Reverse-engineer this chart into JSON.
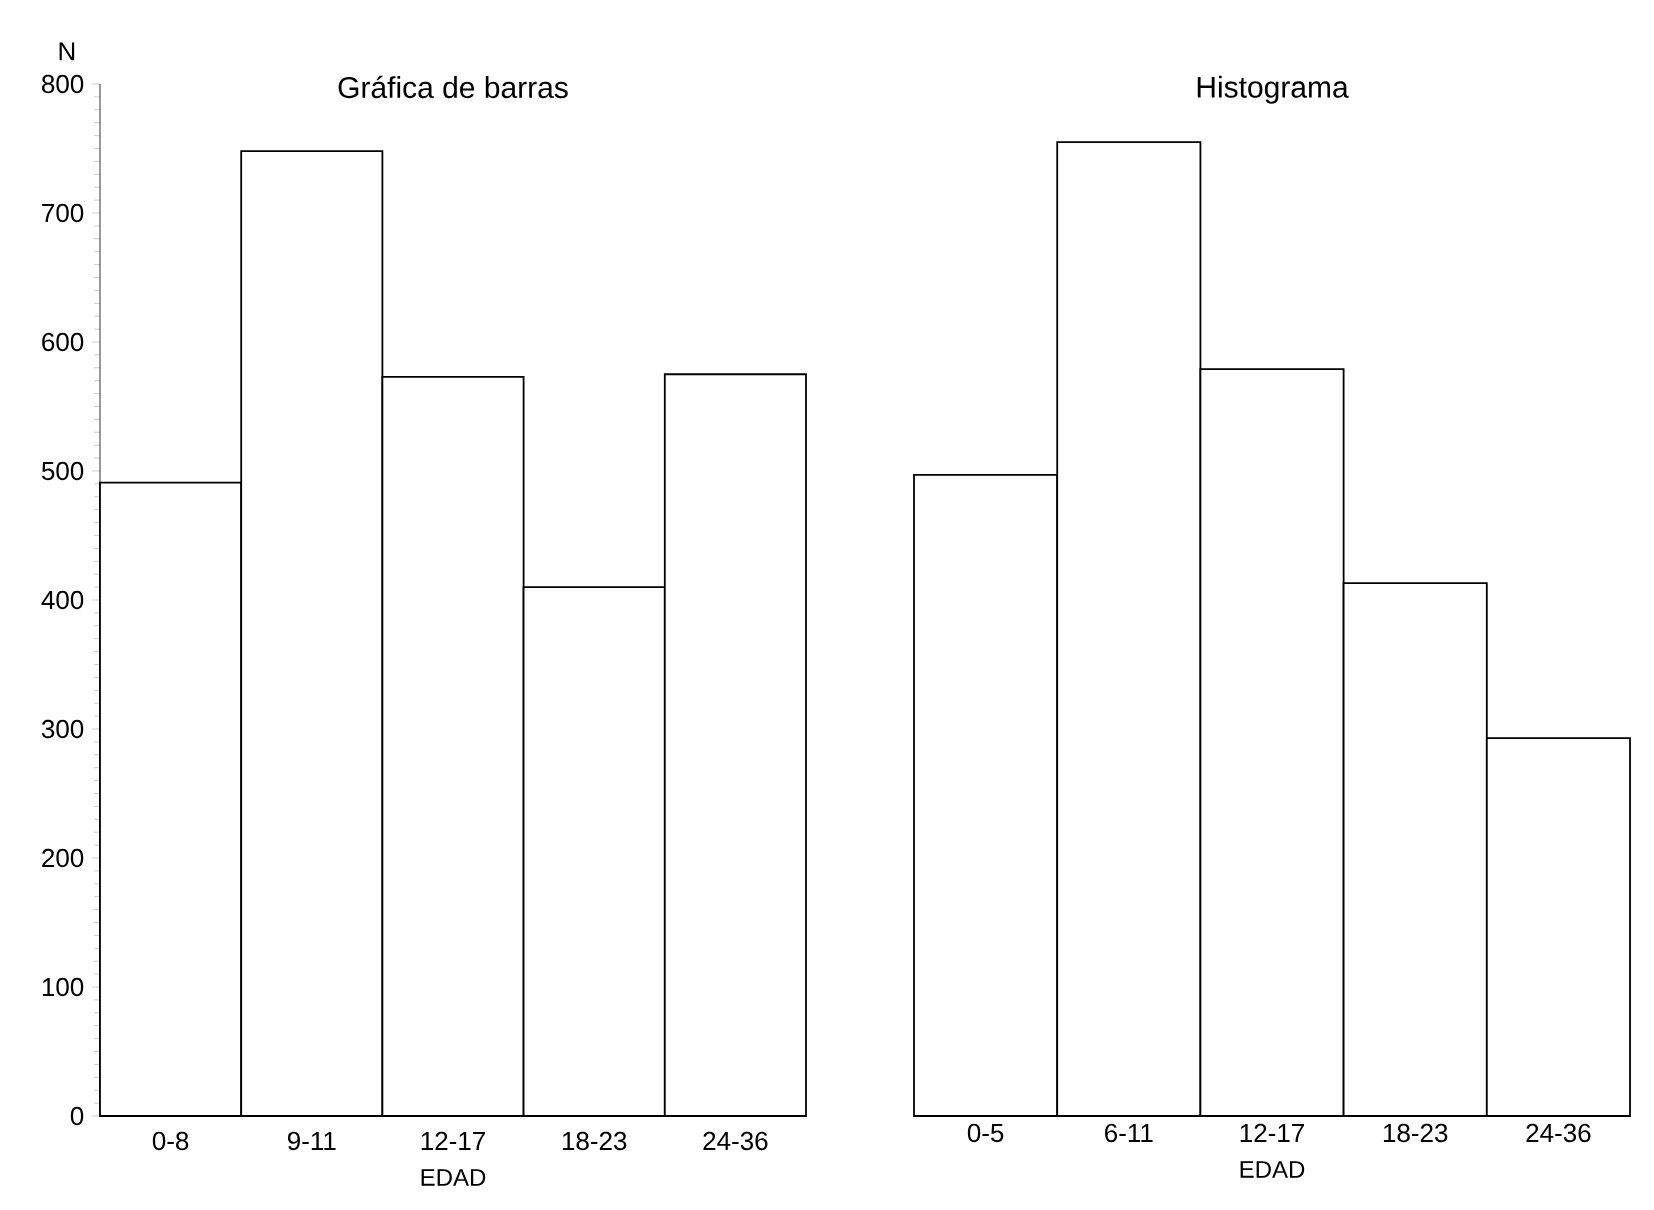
{
  "chart_data": [
    {
      "type": "bar",
      "title": "Gráfica de barras",
      "xlabel": "EDAD",
      "ylabel": "N",
      "categories": [
        "0-8",
        "9-11",
        "12-17",
        "18-23",
        "24-36"
      ],
      "values": [
        491,
        748,
        573,
        410,
        575
      ],
      "color": "#ffffff",
      "ylim": [
        0,
        800
      ],
      "yticks": [
        0,
        100,
        200,
        300,
        400,
        500,
        600,
        700,
        800
      ]
    },
    {
      "type": "bar",
      "title": "Histograma",
      "xlabel": "EDAD",
      "categories": [
        "0-5",
        "6-11",
        "12-17",
        "18-23",
        "24-36"
      ],
      "values": [
        497,
        755,
        579,
        413,
        293
      ],
      "color": "#ffffff",
      "ylim": [
        0,
        800
      ],
      "tick_labels": "x"
    }
  ]
}
